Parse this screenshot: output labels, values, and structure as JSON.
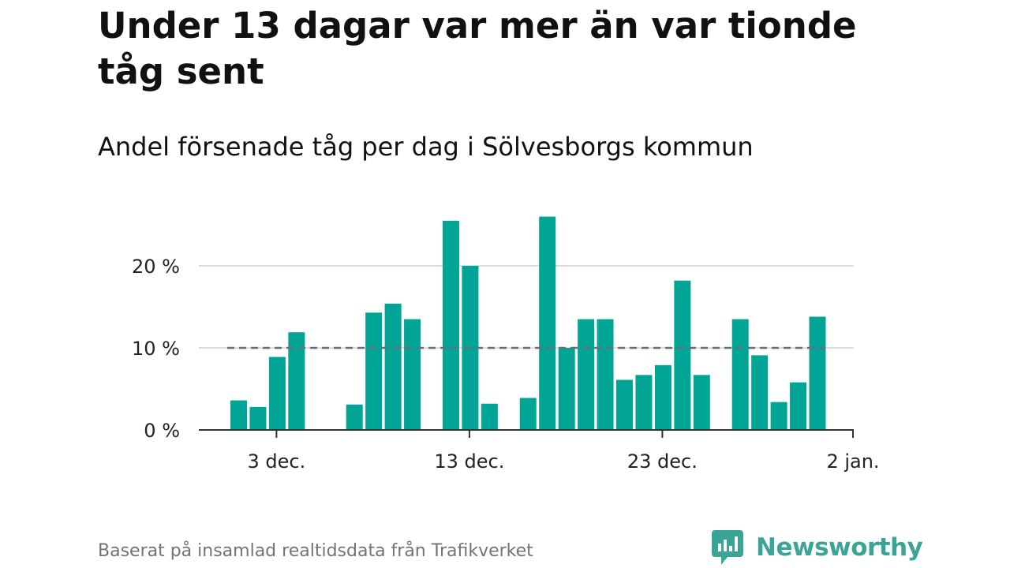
{
  "title": "Under 13 dagar var mer än var tionde tåg sent",
  "subtitle": "Andel försenade tåg per dag i Sölvesborgs kommun",
  "source": "Baserat på insamlad realtidsdata från Trafikverket",
  "brand": {
    "name": "Newsworthy",
    "color": "#3aa596",
    "icon": "bar-chart-badge-icon"
  },
  "colors": {
    "bar": "#00a596",
    "grid": "#dddddd",
    "axis": "#333333",
    "reference_line": "#6e6e7a"
  },
  "chart_data": {
    "type": "bar",
    "title": "Andel försenade tåg per dag i Sölvesborgs kommun",
    "xlabel": "",
    "ylabel": "",
    "unit": "%",
    "ylim": [
      0,
      26
    ],
    "yticks": [
      0,
      10,
      20
    ],
    "ytick_labels": [
      "0 %",
      "10 %",
      "20 %"
    ],
    "xtick_labels": [
      {
        "label": "3 dec.",
        "index": 2
      },
      {
        "label": "13 dec.",
        "index": 12
      },
      {
        "label": "2 jan.",
        "index": 32
      }
    ],
    "xtick_labels_all": [
      "3 dec.",
      "13 dec.",
      "23 dec.",
      "2 jan."
    ],
    "xtick_indices": [
      2,
      12,
      22,
      32
    ],
    "reference_line": {
      "value": 10,
      "style": "dashed"
    },
    "days_start": "1 dec.",
    "days_count": 32,
    "values": [
      3.6,
      2.8,
      8.9,
      11.9,
      null,
      null,
      3.1,
      14.3,
      15.4,
      13.5,
      null,
      25.5,
      20.0,
      3.2,
      null,
      3.9,
      26.0,
      10.0,
      13.5,
      13.5,
      6.1,
      6.7,
      7.9,
      18.2,
      6.7,
      null,
      13.5,
      9.1,
      3.4,
      5.8,
      13.8,
      null
    ]
  }
}
